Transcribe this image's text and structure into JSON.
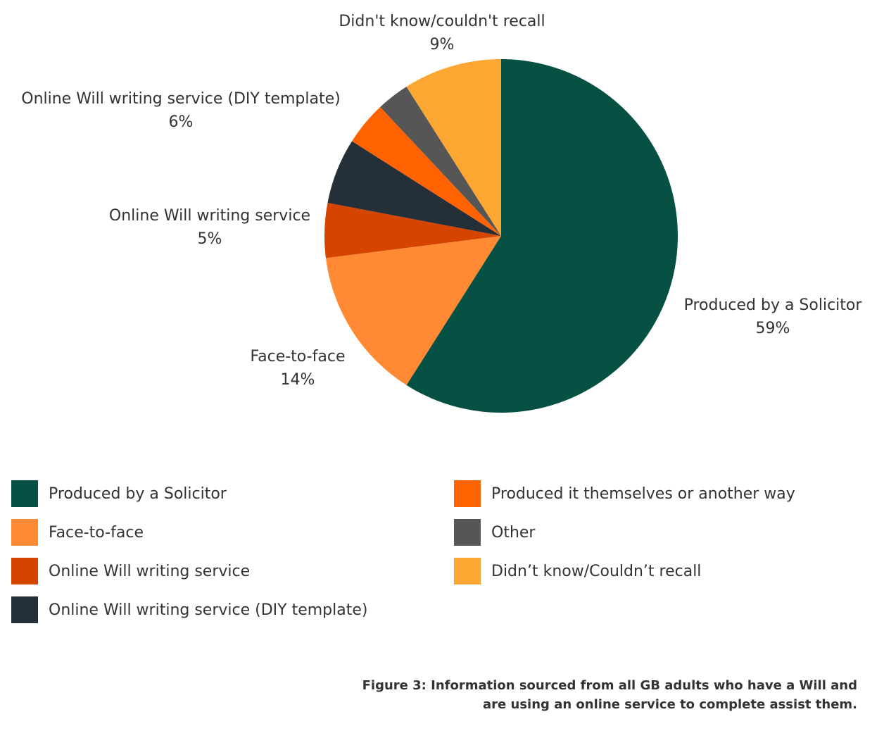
{
  "chart_data": {
    "type": "pie",
    "slices": [
      {
        "label": "Produced by a Solicitor",
        "value": 59,
        "display": "59%",
        "color": "#065143"
      },
      {
        "label": "Face-to-face",
        "value": 14,
        "display": "14%",
        "color": "#FF8A33"
      },
      {
        "label": "Online Will writing service",
        "value": 5,
        "display": "5%",
        "color": "#D64500"
      },
      {
        "label": "Online Will writing service (DIY template)",
        "value": 6,
        "display": "6%",
        "color": "#252F38"
      },
      {
        "label": "",
        "value": 4,
        "display": "",
        "color": "#FF6200"
      },
      {
        "label": "",
        "value": 3,
        "display": "",
        "color": "#565656"
      },
      {
        "label": "Didn't know/couldn't recall",
        "value": 9,
        "display": "9%",
        "color": "#FCA731"
      }
    ],
    "legend": [
      {
        "label": "Produced by a Solicitor",
        "color": "#065143"
      },
      {
        "label": "Face-to-face",
        "color": "#FF8A33"
      },
      {
        "label": "Online Will writing service",
        "color": "#D64500"
      },
      {
        "label": "Online Will writing service (DIY template)",
        "color": "#252F38"
      },
      {
        "label": "Produced it themselves or another way",
        "color": "#FF6200"
      },
      {
        "label": "Other",
        "color": "#565656"
      },
      {
        "label": "Didn’t know/Couldn’t recall",
        "color": "#FCA731"
      }
    ],
    "legend_position": "bottom"
  },
  "caption": {
    "line1": "Figure 3: Information sourced from all GB adults who have a Will and",
    "line2": "are using an online service to complete assist them."
  }
}
